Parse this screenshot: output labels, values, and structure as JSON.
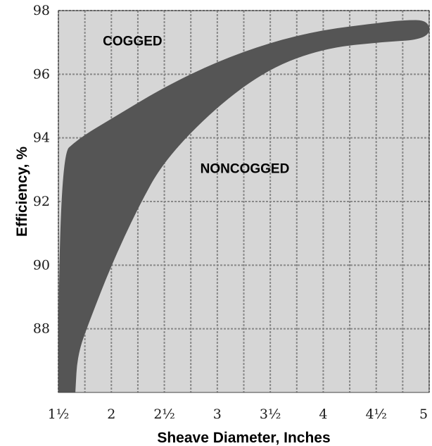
{
  "chart_data": {
    "type": "area",
    "xlabel": "Sheave Diameter, Inches",
    "ylabel": "Efficiency, %",
    "xlim": [
      1.5,
      5
    ],
    "ylim": [
      86,
      98
    ],
    "x_ticks": [
      1.5,
      2,
      2.5,
      3,
      3.5,
      4,
      4.5,
      5
    ],
    "x_tick_labels": [
      "1½",
      "2",
      "2½",
      "3",
      "3½",
      "4",
      "4½",
      "5"
    ],
    "y_ticks": [
      88,
      90,
      92,
      94,
      96,
      98
    ],
    "y_tick_labels": [
      "88",
      "90",
      "92",
      "94",
      "96",
      "98"
    ],
    "grid": true,
    "grid_x": [
      1.5,
      1.75,
      2,
      2.25,
      2.5,
      2.75,
      3,
      3.25,
      3.5,
      3.75,
      4,
      4.25,
      4.5,
      4.75,
      5
    ],
    "band": {
      "upper": {
        "x": [
          1.5,
          1.7,
          2.0,
          2.5,
          3.0,
          3.5,
          4.0,
          4.5,
          4.75,
          5.0
        ],
        "y": [
          93.4,
          94.0,
          94.6,
          95.6,
          96.4,
          97.0,
          97.4,
          97.6,
          97.7,
          97.7
        ]
      },
      "lower": {
        "x": [
          1.66,
          1.68,
          1.8,
          2.0,
          2.25,
          2.5,
          3.0,
          3.5,
          4.0,
          4.5,
          5.0
        ],
        "y": [
          86.0,
          87.2,
          88.3,
          90.0,
          91.8,
          93.3,
          95.0,
          96.2,
          96.8,
          97.0,
          97.1
        ]
      },
      "fill": "#555555"
    },
    "annotations": [
      {
        "text": "COGGED",
        "x": 2.2,
        "y": 96.9
      },
      {
        "text": "NONCOGGED",
        "x": 3.26,
        "y": 92.9
      }
    ],
    "plot_bg": "#d6d6d6",
    "grid_color": "#888888"
  }
}
